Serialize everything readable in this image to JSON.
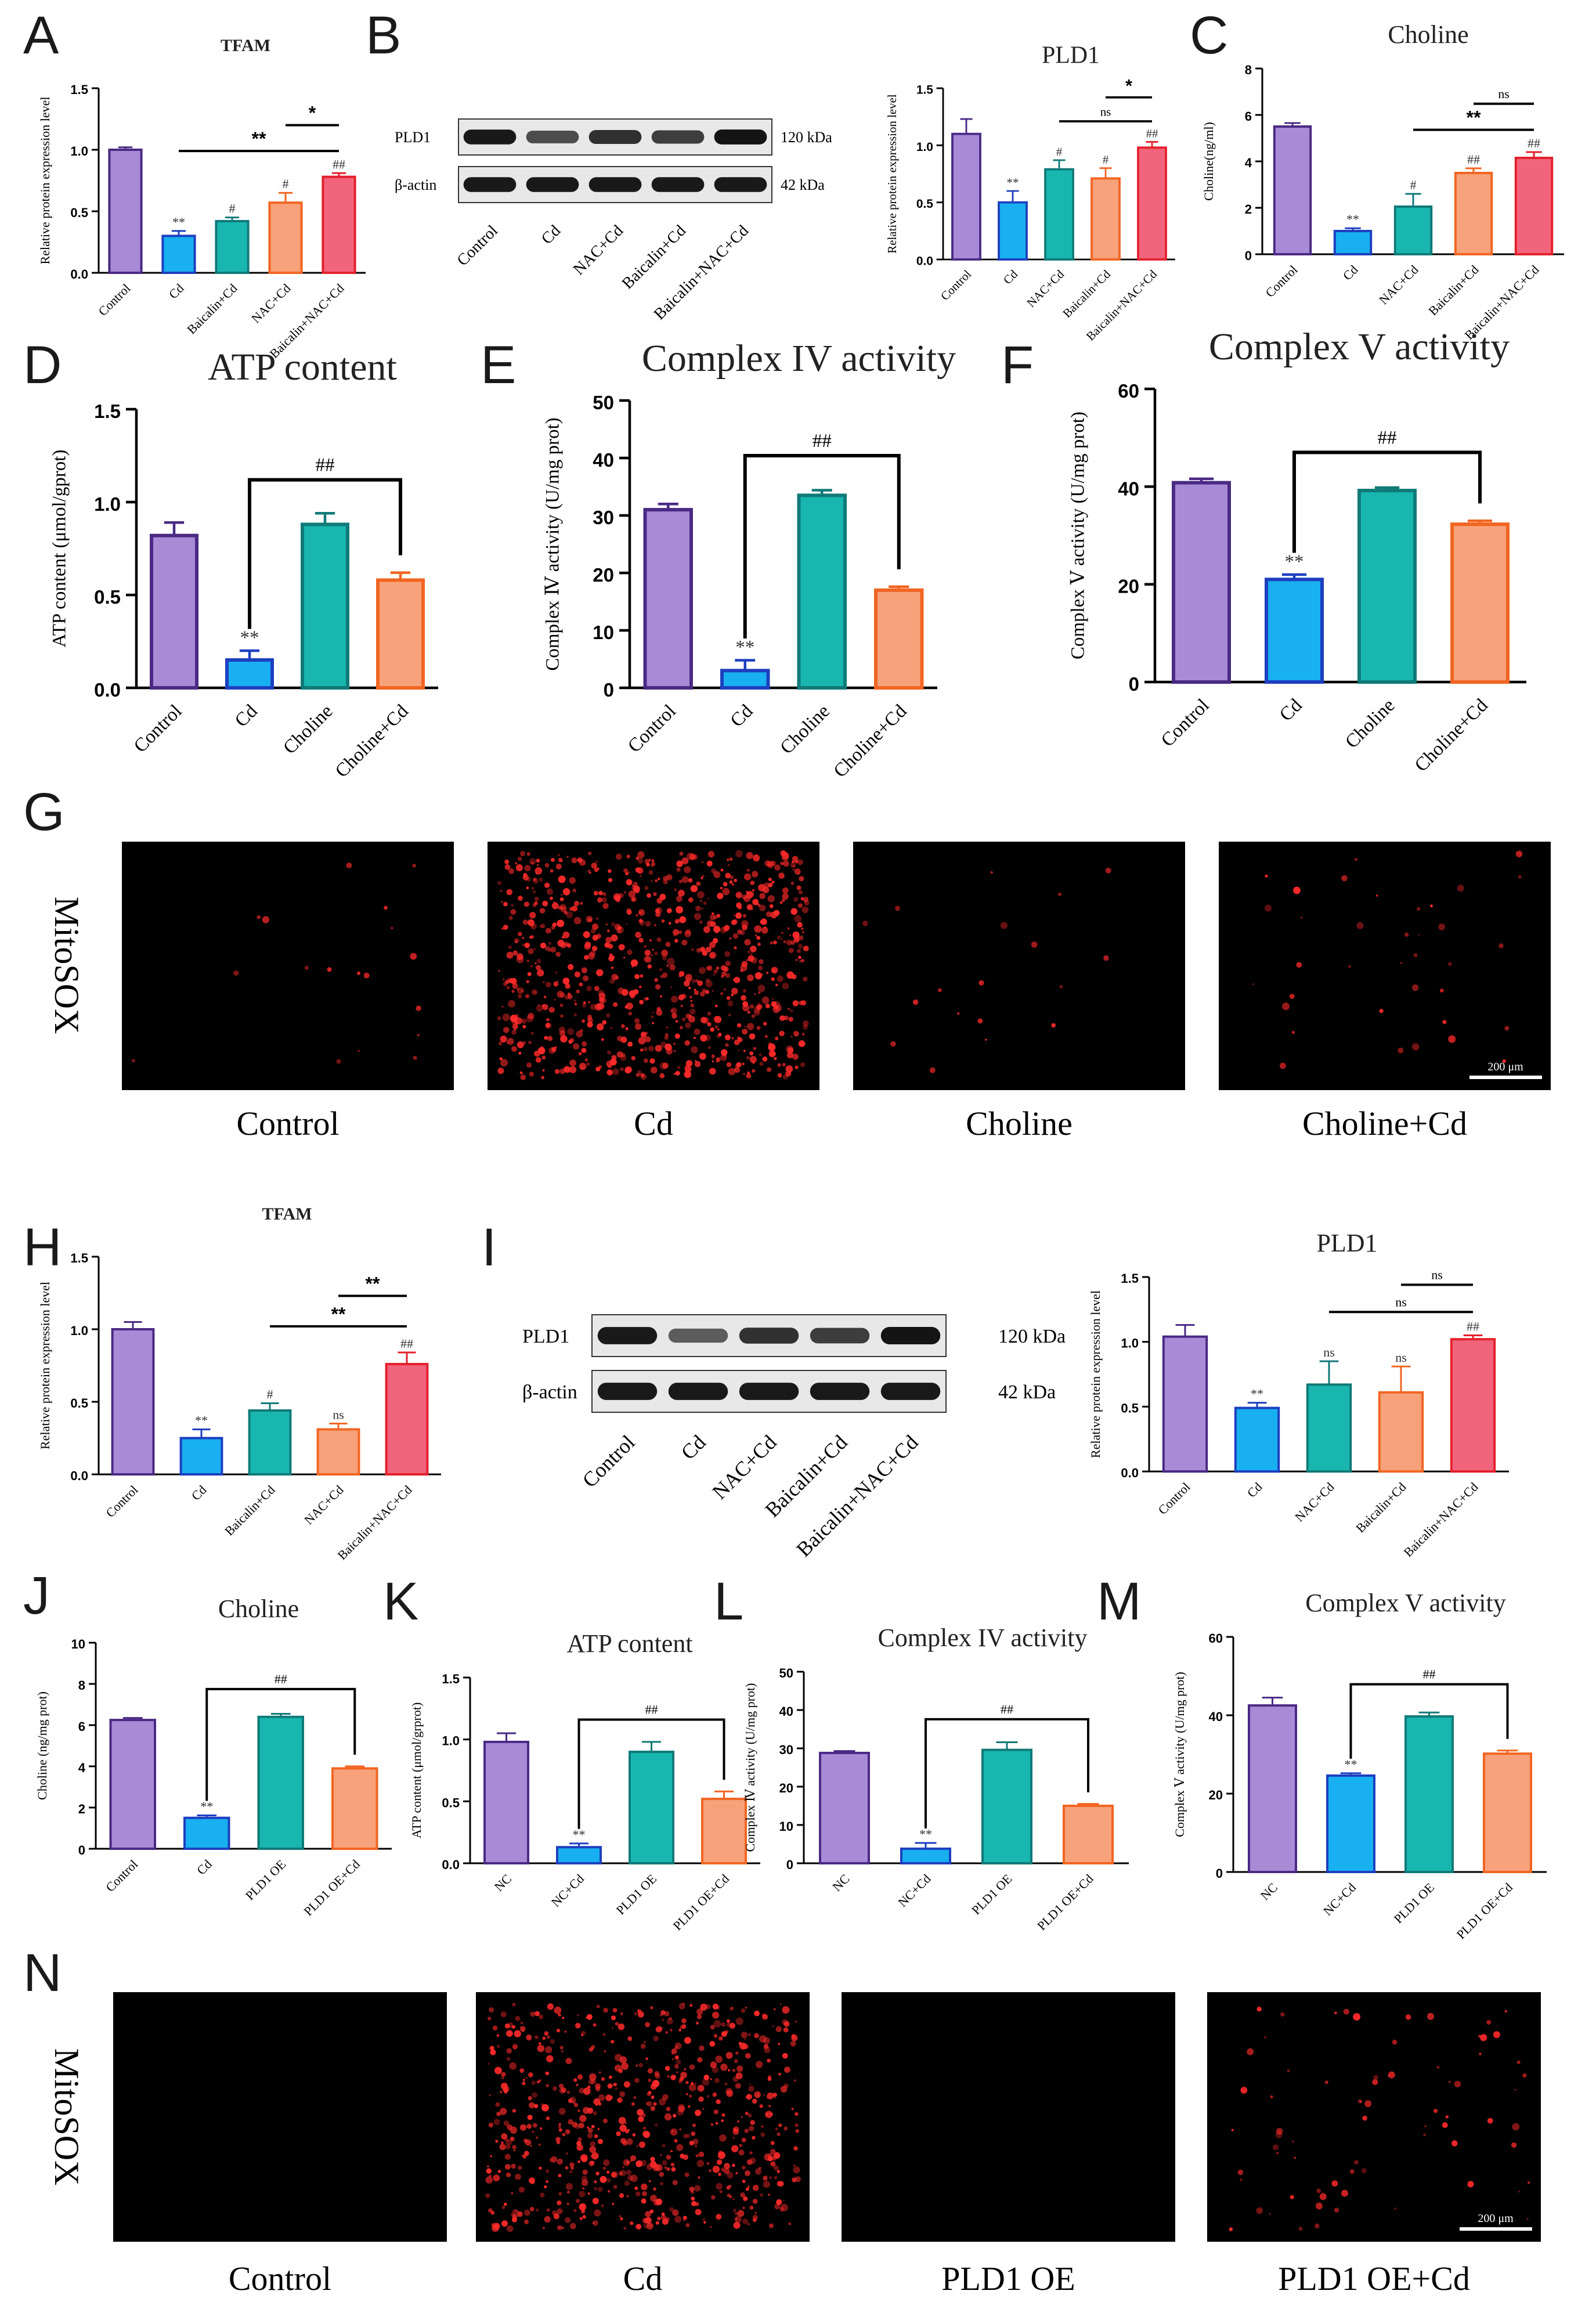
{
  "colors": {
    "purple": "#a78bd6",
    "purple_edge": "#4a2a84",
    "blue": "#18b0f0",
    "blue_edge": "#1d3fc0",
    "teal": "#19b6b0",
    "teal_edge": "#107a78",
    "orange": "#f7a27a",
    "orange_edge": "#f26522",
    "red": "#f2647c",
    "red_edge": "#e3212d",
    "axis": "#000000",
    "fluor_red": "#ff2a2a"
  },
  "panels": {
    "A": {
      "letter": "A"
    },
    "B": {
      "letter": "B"
    },
    "C": {
      "letter": "C"
    },
    "D": {
      "letter": "D"
    },
    "E": {
      "letter": "E"
    },
    "F": {
      "letter": "F"
    },
    "G": {
      "letter": "G"
    },
    "H": {
      "letter": "H"
    },
    "I": {
      "letter": "I"
    },
    "J": {
      "letter": "J"
    },
    "K": {
      "letter": "K"
    },
    "L": {
      "letter": "L"
    },
    "M": {
      "letter": "M"
    },
    "N": {
      "letter": "N"
    }
  },
  "blots": {
    "B": {
      "rows": [
        {
          "label": "PLD1",
          "size": "120 kDa",
          "intensity": [
            0.95,
            0.6,
            0.8,
            0.7,
            0.98
          ]
        },
        {
          "label": "β-actin",
          "size": "42 kDa",
          "intensity": [
            0.95,
            0.95,
            0.95,
            0.95,
            0.95
          ]
        }
      ],
      "lanes": [
        "Control",
        "Cd",
        "NAC+Cd",
        "Baicalin+Cd",
        "Baicalin+NAC+Cd"
      ]
    },
    "I": {
      "rows": [
        {
          "label": "PLD1",
          "size": "120 kDa",
          "intensity": [
            0.95,
            0.5,
            0.78,
            0.72,
            0.98
          ]
        },
        {
          "label": "β-actin",
          "size": "42 kDa",
          "intensity": [
            0.95,
            0.95,
            0.95,
            0.95,
            0.95
          ]
        }
      ],
      "lanes": [
        "Control",
        "Cd",
        "NAC+Cd",
        "Baicalin+Cd",
        "Baicalin+NAC+Cd"
      ]
    }
  },
  "micro": {
    "G": {
      "side_label": "MitoSOX",
      "captions": [
        "Control",
        "Cd",
        "Choline",
        "Choline+Cd"
      ],
      "density": [
        0.02,
        1.0,
        0.02,
        0.04
      ],
      "scale_bar": "200 μm"
    },
    "N": {
      "side_label": "MitoSOX",
      "captions": [
        "Control",
        "Cd",
        "PLD1 OE",
        "PLD1 OE+Cd"
      ],
      "density": [
        0.0,
        0.8,
        0.0,
        0.08
      ],
      "scale_bar": "200 μm"
    }
  },
  "chart_data": [
    {
      "id": "A",
      "type": "bar",
      "title": "TFAM",
      "title_bold": true,
      "ylabel": "Relative protein expression level",
      "ylim": [
        0,
        1.5
      ],
      "yticks": [
        "0.0",
        "0.5",
        "1.0",
        "1.5"
      ],
      "categories": [
        "Control",
        "Cd",
        "Baicalin+Cd",
        "NAC+Cd",
        "Baicalin+NAC+Cd"
      ],
      "values": [
        1.0,
        0.3,
        0.42,
        0.57,
        0.78
      ],
      "errors": [
        0.02,
        0.04,
        0.03,
        0.08,
        0.03
      ],
      "marks": [
        "",
        "**",
        "#",
        "#",
        "##"
      ],
      "brackets": [
        {
          "from": 1,
          "to": 4,
          "label": "**",
          "bold": true
        },
        {
          "from": 3,
          "to": 4,
          "label": "*",
          "bold": true
        }
      ]
    },
    {
      "id": "B",
      "type": "bar",
      "title": "PLD1",
      "title_bold": false,
      "ylabel": "Relative protein expression level",
      "ylim": [
        0,
        1.5
      ],
      "yticks": [
        "0.0",
        "0.5",
        "1.0",
        "1.5"
      ],
      "categories": [
        "Control",
        "Cd",
        "NAC+Cd",
        "Baicalin+Cd",
        "Baicalin+NAC+Cd"
      ],
      "values": [
        1.1,
        0.5,
        0.79,
        0.71,
        0.98
      ],
      "errors": [
        0.13,
        0.1,
        0.08,
        0.09,
        0.05
      ],
      "marks": [
        "",
        "**",
        "#",
        "#",
        "##"
      ],
      "brackets": [
        {
          "from": 2,
          "to": 4,
          "label": "ns",
          "bold": false
        },
        {
          "from": 3,
          "to": 4,
          "label": "*",
          "bold": true
        }
      ]
    },
    {
      "id": "C",
      "type": "bar",
      "title": "Choline",
      "title_bold": false,
      "ylabel": "Choline(ng/ml)",
      "ylim": [
        0,
        8
      ],
      "yticks": [
        "0",
        "2",
        "4",
        "6",
        "8"
      ],
      "categories": [
        "Control",
        "Cd",
        "NAC+Cd",
        "Baicalin+Cd",
        "Baicalin+NAC+Cd"
      ],
      "values": [
        5.5,
        1.0,
        2.05,
        3.5,
        4.15
      ],
      "errors": [
        0.15,
        0.12,
        0.55,
        0.2,
        0.25
      ],
      "marks": [
        "",
        "**",
        "#",
        "##",
        "##"
      ],
      "brackets": [
        {
          "from": 2,
          "to": 4,
          "label": "**",
          "bold": true
        },
        {
          "from": 3,
          "to": 4,
          "label": "ns",
          "bold": false
        }
      ]
    },
    {
      "id": "D",
      "type": "bar",
      "title": "ATP content",
      "title_bold": false,
      "ylabel": "ATP content (μmol/gprot)",
      "ylim": [
        0,
        1.5
      ],
      "yticks": [
        "0.0",
        "0.5",
        "1.0",
        "1.5"
      ],
      "categories": [
        "Control",
        "Cd",
        "Choline",
        "Choline+Cd"
      ],
      "values": [
        0.82,
        0.15,
        0.88,
        0.58
      ],
      "errors": [
        0.07,
        0.05,
        0.06,
        0.04
      ],
      "marks": [
        "",
        "**",
        "",
        ""
      ],
      "brackets": [
        {
          "from": 1,
          "to": 3,
          "label": "##",
          "bold": false
        }
      ]
    },
    {
      "id": "E",
      "type": "bar",
      "title": "Complex IV activity",
      "title_bold": false,
      "ylabel": "Complex Ⅳ activity (U/mg prot)",
      "ylim": [
        0,
        50
      ],
      "yticks": [
        "0",
        "10",
        "20",
        "30",
        "40",
        "50"
      ],
      "categories": [
        "Control",
        "Cd",
        "Choline",
        "Choline+Cd"
      ],
      "values": [
        31.0,
        3.0,
        33.5,
        17.0
      ],
      "errors": [
        1.0,
        1.8,
        0.9,
        0.6
      ],
      "marks": [
        "",
        "**",
        "",
        ""
      ],
      "brackets": [
        {
          "from": 1,
          "to": 3,
          "label": "##",
          "bold": false
        }
      ]
    },
    {
      "id": "F",
      "type": "bar",
      "title": "Complex V activity",
      "title_bold": false,
      "ylabel": "Complex Ⅴ activity (U/mg prot)",
      "ylim": [
        0,
        60
      ],
      "yticks": [
        "0",
        "20",
        "40",
        "60"
      ],
      "categories": [
        "Control",
        "Cd",
        "Choline",
        "Choline+Cd"
      ],
      "values": [
        40.8,
        21.0,
        39.2,
        32.3
      ],
      "errors": [
        0.8,
        1.0,
        0.6,
        0.7
      ],
      "marks": [
        "",
        "**",
        "",
        ""
      ],
      "brackets": [
        {
          "from": 1,
          "to": 3,
          "label": "##",
          "bold": false
        }
      ]
    },
    {
      "id": "H",
      "type": "bar",
      "title": "TFAM",
      "title_bold": true,
      "ylabel": "Relative protein expression level",
      "ylim": [
        0,
        1.5
      ],
      "yticks": [
        "0.0",
        "0.5",
        "1.0",
        "1.5"
      ],
      "categories": [
        "Control",
        "Cd",
        "Baicalin+Cd",
        "NAC+Cd",
        "Baicalin+NAC+Cd"
      ],
      "values": [
        1.0,
        0.25,
        0.44,
        0.31,
        0.76
      ],
      "errors": [
        0.05,
        0.06,
        0.05,
        0.04,
        0.08
      ],
      "marks": [
        "",
        "**",
        "#",
        "ns",
        "##"
      ],
      "brackets": [
        {
          "from": 2,
          "to": 4,
          "label": "**",
          "bold": true
        },
        {
          "from": 3,
          "to": 4,
          "label": "**",
          "bold": true
        }
      ]
    },
    {
      "id": "I",
      "type": "bar",
      "title": "PLD1",
      "title_bold": false,
      "ylabel": "Relative protein expression level",
      "ylim": [
        0,
        1.5
      ],
      "yticks": [
        "0.0",
        "0.5",
        "1.0",
        "1.5"
      ],
      "categories": [
        "Control",
        "Cd",
        "NAC+Cd",
        "Baicalin+Cd",
        "Baicalin+NAC+Cd"
      ],
      "values": [
        1.04,
        0.49,
        0.67,
        0.61,
        1.02
      ],
      "errors": [
        0.09,
        0.04,
        0.18,
        0.2,
        0.03
      ],
      "marks": [
        "",
        "**",
        "ns",
        "ns",
        "##"
      ],
      "brackets": [
        {
          "from": 2,
          "to": 4,
          "label": "ns",
          "bold": false
        },
        {
          "from": 3,
          "to": 4,
          "label": "ns",
          "bold": false
        }
      ]
    },
    {
      "id": "J",
      "type": "bar",
      "title": "Choline",
      "title_bold": false,
      "ylabel": "Choline (ng/mg prot)",
      "ylim": [
        0,
        10
      ],
      "yticks": [
        "0",
        "2",
        "4",
        "6",
        "8",
        "10"
      ],
      "categories": [
        "Control",
        "Cd",
        "PLD1 OE",
        "PLD1 OE+Cd"
      ],
      "values": [
        6.25,
        1.5,
        6.4,
        3.9
      ],
      "errors": [
        0.1,
        0.12,
        0.15,
        0.1
      ],
      "marks": [
        "",
        "**",
        "",
        ""
      ],
      "brackets": [
        {
          "from": 1,
          "to": 3,
          "label": "##",
          "bold": false
        }
      ]
    },
    {
      "id": "K",
      "type": "bar",
      "title": "ATP content",
      "title_bold": false,
      "ylabel": "ATP content (μmol/grprot)",
      "ylim": [
        0,
        1.5
      ],
      "yticks": [
        "0.0",
        "0.5",
        "1.0",
        "1.5"
      ],
      "categories": [
        "NC",
        "NC+Cd",
        "PLD1 OE",
        "PLD1 OE+Cd"
      ],
      "values": [
        0.98,
        0.13,
        0.9,
        0.52
      ],
      "errors": [
        0.07,
        0.03,
        0.08,
        0.06
      ],
      "marks": [
        "",
        "**",
        "",
        ""
      ],
      "brackets": [
        {
          "from": 1,
          "to": 3,
          "label": "##",
          "bold": false
        }
      ]
    },
    {
      "id": "L",
      "type": "bar",
      "title": "Complex IV activity",
      "title_bold": false,
      "ylabel": "Complex Ⅳ activity (U/mg prot)",
      "ylim": [
        0,
        50
      ],
      "yticks": [
        "0",
        "10",
        "20",
        "30",
        "40",
        "50"
      ],
      "categories": [
        "NC",
        "NC+Cd",
        "PLD1 OE",
        "PLD1 OE+Cd"
      ],
      "values": [
        28.8,
        3.8,
        29.6,
        15.0
      ],
      "errors": [
        0.5,
        1.5,
        2.0,
        0.5
      ],
      "marks": [
        "",
        "**",
        "",
        ""
      ],
      "brackets": [
        {
          "from": 1,
          "to": 3,
          "label": "##",
          "bold": false
        }
      ]
    },
    {
      "id": "M",
      "type": "bar",
      "title": "Complex V activity",
      "title_bold": false,
      "ylabel": "Complex Ⅴ activity (U/mg prot)",
      "ylim": [
        0,
        60
      ],
      "yticks": [
        "0",
        "20",
        "40",
        "60"
      ],
      "categories": [
        "NC",
        "NC+Cd",
        "PLD1 OE",
        "PLD1 OE+Cd"
      ],
      "values": [
        42.5,
        24.6,
        39.7,
        30.2
      ],
      "errors": [
        2.0,
        0.6,
        1.0,
        0.8
      ],
      "marks": [
        "",
        "**",
        "",
        ""
      ],
      "brackets": [
        {
          "from": 1,
          "to": 3,
          "label": "##",
          "bold": false
        }
      ]
    }
  ]
}
